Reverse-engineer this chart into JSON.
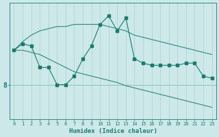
{
  "xlabel": "Humidex (Indice chaleur)",
  "bg_color": "#cce8e8",
  "line_color": "#1a7a6e",
  "grid_color": "#aacfcf",
  "x_values": [
    0,
    1,
    2,
    3,
    4,
    5,
    6,
    7,
    8,
    9,
    10,
    11,
    12,
    13,
    14,
    15,
    16,
    17,
    18,
    19,
    20,
    21,
    22,
    23
  ],
  "y_main": [
    9.6,
    9.9,
    9.8,
    8.8,
    8.8,
    8.0,
    8.0,
    8.4,
    9.2,
    9.8,
    10.8,
    11.2,
    10.5,
    11.1,
    9.2,
    9.0,
    8.9,
    8.9,
    8.9,
    8.9,
    9.0,
    9.0,
    8.4,
    8.3
  ],
  "y_upper": [
    9.6,
    10.0,
    10.3,
    10.5,
    10.6,
    10.7,
    10.7,
    10.8,
    10.8,
    10.8,
    10.8,
    10.7,
    10.6,
    10.5,
    10.3,
    10.2,
    10.1,
    10.0,
    9.9,
    9.8,
    9.7,
    9.6,
    9.5,
    9.4
  ],
  "y_lower": [
    9.6,
    9.6,
    9.5,
    9.4,
    9.2,
    9.0,
    8.8,
    8.6,
    8.5,
    8.4,
    8.3,
    8.2,
    8.1,
    7.95,
    7.85,
    7.75,
    7.65,
    7.55,
    7.45,
    7.35,
    7.25,
    7.15,
    7.05,
    6.95
  ],
  "ytick_val": 8.0,
  "ytick_label": "8",
  "xlim": [
    -0.5,
    23.5
  ],
  "ylim": [
    6.4,
    11.8
  ]
}
